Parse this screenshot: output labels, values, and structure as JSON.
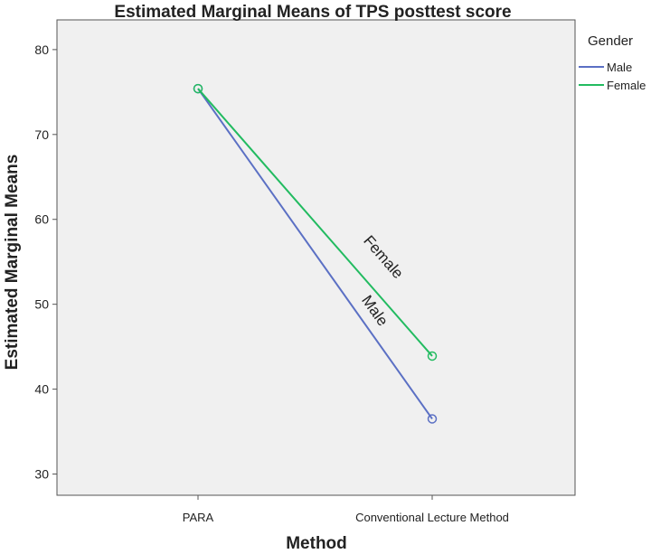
{
  "chart_data": {
    "type": "line",
    "title": "Estimated Marginal Means of TPS posttest score",
    "x_label": "Method",
    "y_label": "Estimated Marginal Means",
    "legend_title": "Gender",
    "legend": "right",
    "categories": [
      "PARA",
      "Conventional Lecture Method"
    ],
    "series": [
      {
        "name": "Male",
        "color": "#5b70c4",
        "values": [
          75.4,
          36.5
        ]
      },
      {
        "name": "Female",
        "color": "#22bb60",
        "values": [
          75.4,
          43.9
        ]
      }
    ],
    "ylim": [
      27.5,
      83.5
    ],
    "yticks": [
      30,
      40,
      50,
      60,
      70,
      80
    ]
  }
}
